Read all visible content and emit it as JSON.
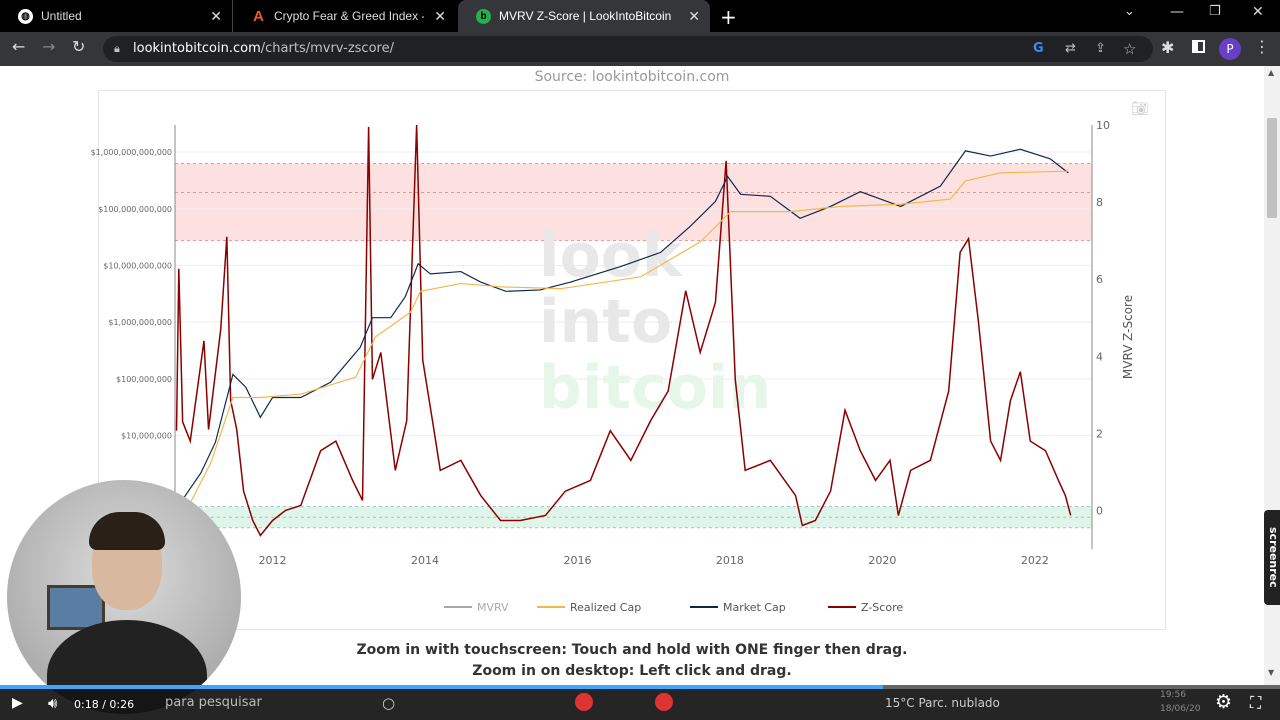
{
  "browser": {
    "tabs": [
      {
        "title": "Untitled",
        "icon": "globe-icon"
      },
      {
        "title": "Crypto Fear & Greed Index - Bitc",
        "icon": "alternative-me-icon"
      },
      {
        "title": "MVRV Z-Score | LookIntoBitcoin",
        "icon": "lookintobitcoin-icon",
        "active": true
      }
    ],
    "url_domain": "lookintobitcoin.com",
    "url_path": "/charts/mvrv-zscore/",
    "profile_initial": "P"
  },
  "page": {
    "source": "Source: lookintobitcoin.com",
    "zoom_touch": "Zoom in with touchscreen: Touch and hold with ONE finger then drag.",
    "zoom_desktop": "Zoom in on desktop: Left click and drag.",
    "watermark": [
      "look",
      "into",
      "bitcoin"
    ]
  },
  "chart_data": {
    "type": "line",
    "ylabel_right": "MVRV Z-Score",
    "x_ticks": [
      "2012",
      "2014",
      "2016",
      "2018",
      "2020",
      "2022"
    ],
    "x_range": [
      2010.72,
      2022.75
    ],
    "left_axis": {
      "scale": "log",
      "ticks": [
        "$10,000,000",
        "$100,000,000",
        "$1,000,000,000",
        "$10,000,000,000",
        "$100,000,000,000",
        "$1,000,000,000,000"
      ],
      "range": [
        100000.0,
        3000000000000.0
      ]
    },
    "right_axis": {
      "ticks": [
        "0",
        "2",
        "4",
        "6",
        "8",
        "10"
      ],
      "range": [
        -1,
        10
      ]
    },
    "zones": {
      "red": [
        7,
        9
      ],
      "green": [
        -0.45,
        0.1
      ]
    },
    "legend": [
      "MVRV",
      "Realized Cap",
      "Market Cap",
      "Z-Score"
    ],
    "colors": {
      "MVRV": "#a8a8a8",
      "Realized Cap": "#f2b84b",
      "Market Cap": "#0d2a4e",
      "Z-Score": "#8b0000",
      "red_zone": "#fde0e0",
      "green_zone": "#e0f5ea"
    },
    "series": [
      {
        "name": "Z-Score",
        "axis": "right",
        "points": [
          [
            2010.74,
            2.07
          ],
          [
            2010.77,
            6.27
          ],
          [
            2010.82,
            2.3
          ],
          [
            2010.92,
            1.8
          ],
          [
            2011.1,
            4.4
          ],
          [
            2011.16,
            2.1
          ],
          [
            2011.24,
            3.4
          ],
          [
            2011.32,
            4.7
          ],
          [
            2011.4,
            7.1
          ],
          [
            2011.45,
            2.85
          ],
          [
            2011.53,
            2.1
          ],
          [
            2011.62,
            0.5
          ],
          [
            2011.74,
            -0.26
          ],
          [
            2011.84,
            -0.65
          ],
          [
            2012.0,
            -0.26
          ],
          [
            2012.17,
            0
          ],
          [
            2012.37,
            0.13
          ],
          [
            2012.63,
            1.55
          ],
          [
            2012.83,
            1.8
          ],
          [
            2013.05,
            0.78
          ],
          [
            2013.18,
            0.26
          ],
          [
            2013.26,
            9.95
          ],
          [
            2013.31,
            3.4
          ],
          [
            2013.42,
            4.1
          ],
          [
            2013.61,
            1.04
          ],
          [
            2013.76,
            2.33
          ],
          [
            2013.89,
            10
          ],
          [
            2013.97,
            3.9
          ],
          [
            2014.1,
            2.3
          ],
          [
            2014.2,
            1.04
          ],
          [
            2014.47,
            1.3
          ],
          [
            2014.73,
            0.39
          ],
          [
            2014.99,
            -0.26
          ],
          [
            2015.25,
            -0.26
          ],
          [
            2015.58,
            -0.13
          ],
          [
            2015.84,
            0.5
          ],
          [
            2016.17,
            0.78
          ],
          [
            2016.43,
            2.07
          ],
          [
            2016.7,
            1.3
          ],
          [
            2016.96,
            2.33
          ],
          [
            2017.19,
            3.1
          ],
          [
            2017.42,
            5.7
          ],
          [
            2017.61,
            4.1
          ],
          [
            2017.81,
            5.4
          ],
          [
            2017.95,
            9.07
          ],
          [
            2018.07,
            3.4
          ],
          [
            2018.2,
            1.04
          ],
          [
            2018.53,
            1.3
          ],
          [
            2018.86,
            0.39
          ],
          [
            2018.95,
            -0.39
          ],
          [
            2019.12,
            -0.26
          ],
          [
            2019.32,
            0.5
          ],
          [
            2019.51,
            2.6
          ],
          [
            2019.71,
            1.55
          ],
          [
            2019.91,
            0.78
          ],
          [
            2020.1,
            1.3
          ],
          [
            2020.21,
            -0.13
          ],
          [
            2020.37,
            1.04
          ],
          [
            2020.63,
            1.3
          ],
          [
            2020.87,
            3.1
          ],
          [
            2021.02,
            6.7
          ],
          [
            2021.13,
            7.05
          ],
          [
            2021.26,
            4.9
          ],
          [
            2021.42,
            1.8
          ],
          [
            2021.55,
            1.3
          ],
          [
            2021.68,
            2.85
          ],
          [
            2021.81,
            3.6
          ],
          [
            2021.94,
            1.8
          ],
          [
            2022.14,
            1.55
          ],
          [
            2022.31,
            0.78
          ],
          [
            2022.4,
            0.39
          ],
          [
            2022.47,
            -0.13
          ]
        ]
      },
      {
        "name": "Market Cap",
        "axis": "left",
        "points": [
          [
            2010.79,
            650000.0
          ],
          [
            2011.06,
            2200000.0
          ],
          [
            2011.25,
            7600000.0
          ],
          [
            2011.48,
            120000000.0
          ],
          [
            2011.65,
            71000000.0
          ],
          [
            2011.84,
            21000000.0
          ],
          [
            2012.0,
            47000000.0
          ],
          [
            2012.37,
            47000000.0
          ],
          [
            2012.76,
            87000000.0
          ],
          [
            2013.15,
            360000000.0
          ],
          [
            2013.31,
            1200000000.0
          ],
          [
            2013.55,
            1200000000.0
          ],
          [
            2013.74,
            2800000000.0
          ],
          [
            2013.91,
            10700000000.0
          ],
          [
            2014.07,
            7100000000.0
          ],
          [
            2014.47,
            7800000000.0
          ],
          [
            2014.73,
            5100000000.0
          ],
          [
            2015.06,
            3500000000.0
          ],
          [
            2015.51,
            3700000000.0
          ],
          [
            2015.91,
            5100000000.0
          ],
          [
            2016.56,
            9500000000.0
          ],
          [
            2017.09,
            17000000000.0
          ],
          [
            2017.48,
            49000000000.0
          ],
          [
            2017.81,
            135000000000.0
          ],
          [
            2017.97,
            370000000000.0
          ],
          [
            2018.14,
            180000000000.0
          ],
          [
            2018.53,
            166000000000.0
          ],
          [
            2018.92,
            68000000000.0
          ],
          [
            2019.32,
            110000000000.0
          ],
          [
            2019.71,
            200000000000.0
          ],
          [
            2020.24,
            110000000000.0
          ],
          [
            2020.76,
            250000000000.0
          ],
          [
            2021.09,
            1050000000000.0
          ],
          [
            2021.42,
            850000000000.0
          ],
          [
            2021.81,
            1120000000000.0
          ],
          [
            2022.2,
            760000000000.0
          ],
          [
            2022.44,
            430000000000.0
          ]
        ]
      },
      {
        "name": "Realized Cap",
        "axis": "left",
        "points": [
          [
            2010.92,
            650000.0
          ],
          [
            2011.19,
            3300000.0
          ],
          [
            2011.48,
            47000000.0
          ],
          [
            2011.84,
            47000000.0
          ],
          [
            2012.37,
            54000000.0
          ],
          [
            2013.09,
            107000000.0
          ],
          [
            2013.35,
            550000000.0
          ],
          [
            2013.81,
            1500000000.0
          ],
          [
            2013.94,
            3500000000.0
          ],
          [
            2014.47,
            4800000000.0
          ],
          [
            2014.99,
            4200000000.0
          ],
          [
            2015.78,
            3900000000.0
          ],
          [
            2016.83,
            6300000000.0
          ],
          [
            2017.61,
            26000000000.0
          ],
          [
            2018.01,
            89000000000.0
          ],
          [
            2018.79,
            89000000000.0
          ],
          [
            2019.45,
            110000000000.0
          ],
          [
            2020.24,
            120000000000.0
          ],
          [
            2020.89,
            148000000000.0
          ],
          [
            2021.09,
            310000000000.0
          ],
          [
            2021.55,
            430000000000.0
          ],
          [
            2022.44,
            460000000000.0
          ]
        ]
      }
    ]
  },
  "player": {
    "time": "0:18 / 0:26",
    "progress_percent": 69
  },
  "taskbar": {
    "search": "para pesquisar",
    "weather": "15°C  Parc. nublado",
    "clock": "19:56",
    "date": "18/06/20"
  },
  "screenrec": "screenrec"
}
